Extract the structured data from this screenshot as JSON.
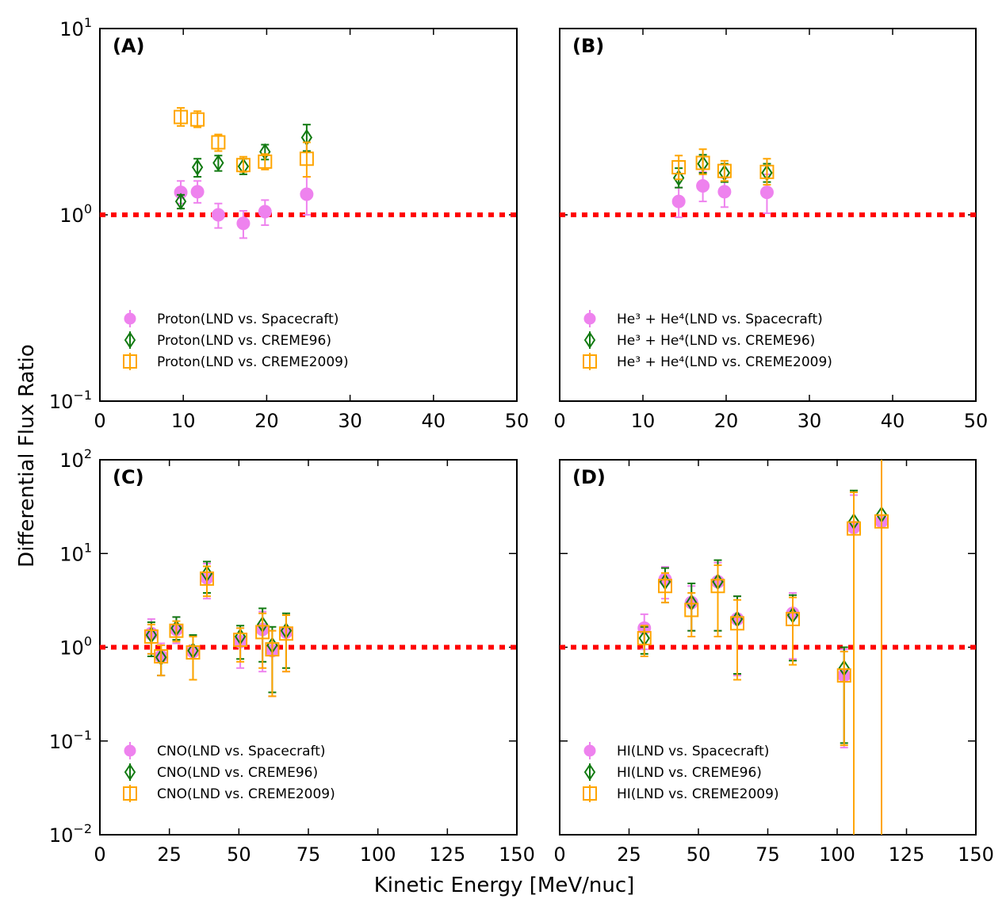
{
  "figure": {
    "ylabel": "Differential Flux Ratio",
    "xlabel": "Kinetic Energy [MeV/nuc]"
  },
  "colors": {
    "spacecraft": "#ee82ee",
    "creme96": "#117a11",
    "creme2009": "#ffa500",
    "reference_line": "#ff0000"
  },
  "chart_data": [
    {
      "panel": "(A)",
      "type": "scatter",
      "xlim": [
        0,
        50
      ],
      "ylim": [
        0.1,
        10
      ],
      "yscale": "log",
      "xticks": [
        0,
        10,
        20,
        30,
        40,
        50
      ],
      "yticks": [
        {
          "mant": "10",
          "exp": "−1",
          "v": 0.1
        },
        {
          "mant": "10",
          "exp": "0",
          "v": 1
        },
        {
          "mant": "10",
          "exp": "1",
          "v": 10
        }
      ],
      "reference_y": 1,
      "series": [
        {
          "name": "Proton(LND vs.  Spacecraft)",
          "marker": "circle",
          "color_key": "spacecraft",
          "points": [
            {
              "x": 9.7,
              "y": 1.32,
              "lo": 1.15,
              "hi": 1.52
            },
            {
              "x": 11.7,
              "y": 1.33,
              "lo": 1.16,
              "hi": 1.52
            },
            {
              "x": 14.2,
              "y": 1.0,
              "lo": 0.85,
              "hi": 1.15
            },
            {
              "x": 17.2,
              "y": 0.9,
              "lo": 0.75,
              "hi": 1.05
            },
            {
              "x": 19.8,
              "y": 1.04,
              "lo": 0.88,
              "hi": 1.2
            },
            {
              "x": 24.8,
              "y": 1.29,
              "lo": 1.0,
              "hi": 1.6
            }
          ]
        },
        {
          "name": "Proton(LND vs.  CREME96)",
          "marker": "diamond",
          "color_key": "creme96",
          "points": [
            {
              "x": 9.7,
              "y": 1.18,
              "lo": 1.08,
              "hi": 1.28
            },
            {
              "x": 11.7,
              "y": 1.8,
              "lo": 1.6,
              "hi": 2.0
            },
            {
              "x": 14.2,
              "y": 1.9,
              "lo": 1.72,
              "hi": 2.08
            },
            {
              "x": 17.2,
              "y": 1.82,
              "lo": 1.65,
              "hi": 2.0
            },
            {
              "x": 19.8,
              "y": 2.18,
              "lo": 1.98,
              "hi": 2.38
            },
            {
              "x": 24.8,
              "y": 2.6,
              "lo": 2.2,
              "hi": 3.05
            }
          ]
        },
        {
          "name": "Proton(LND vs.  CREME2009)",
          "marker": "square",
          "color_key": "creme2009",
          "points": [
            {
              "x": 9.7,
              "y": 3.35,
              "lo": 3.0,
              "hi": 3.75
            },
            {
              "x": 11.7,
              "y": 3.25,
              "lo": 2.95,
              "hi": 3.6
            },
            {
              "x": 14.2,
              "y": 2.45,
              "lo": 2.2,
              "hi": 2.7
            },
            {
              "x": 17.2,
              "y": 1.85,
              "lo": 1.7,
              "hi": 2.05
            },
            {
              "x": 19.8,
              "y": 1.93,
              "lo": 1.75,
              "hi": 2.12
            },
            {
              "x": 24.8,
              "y": 2.0,
              "lo": 1.6,
              "hi": 2.45
            }
          ]
        }
      ]
    },
    {
      "panel": "(B)",
      "type": "scatter",
      "xlim": [
        0,
        50
      ],
      "ylim": [
        0.1,
        10
      ],
      "yscale": "log",
      "xticks": [
        0,
        10,
        20,
        30,
        40,
        50
      ],
      "yticks": [],
      "reference_y": 1,
      "series": [
        {
          "name": "He³ + He⁴(LND vs.  Spacecraft)",
          "marker": "circle",
          "color_key": "spacecraft",
          "points": [
            {
              "x": 14.3,
              "y": 1.18,
              "lo": 0.97,
              "hi": 1.4
            },
            {
              "x": 17.2,
              "y": 1.43,
              "lo": 1.18,
              "hi": 1.7
            },
            {
              "x": 19.8,
              "y": 1.33,
              "lo": 1.1,
              "hi": 1.58
            },
            {
              "x": 24.9,
              "y": 1.32,
              "lo": 1.02,
              "hi": 1.65
            }
          ]
        },
        {
          "name": "He³ + He⁴(LND vs.  CREME96)",
          "marker": "diamond",
          "color_key": "creme96",
          "points": [
            {
              "x": 14.3,
              "y": 1.58,
              "lo": 1.4,
              "hi": 1.78
            },
            {
              "x": 17.2,
              "y": 1.88,
              "lo": 1.68,
              "hi": 2.1
            },
            {
              "x": 19.8,
              "y": 1.68,
              "lo": 1.5,
              "hi": 1.88
            },
            {
              "x": 24.9,
              "y": 1.68,
              "lo": 1.5,
              "hi": 1.88
            }
          ]
        },
        {
          "name": "He³ + He⁴(LND vs.  CREME2009)",
          "marker": "square",
          "color_key": "creme2009",
          "points": [
            {
              "x": 14.3,
              "y": 1.8,
              "lo": 1.55,
              "hi": 2.08
            },
            {
              "x": 17.2,
              "y": 1.9,
              "lo": 1.65,
              "hi": 2.25
            },
            {
              "x": 19.8,
              "y": 1.72,
              "lo": 1.52,
              "hi": 1.95
            },
            {
              "x": 24.9,
              "y": 1.7,
              "lo": 1.45,
              "hi": 2.0
            }
          ]
        }
      ]
    },
    {
      "panel": "(C)",
      "type": "scatter",
      "xlim": [
        0,
        150
      ],
      "ylim": [
        0.01,
        100
      ],
      "yscale": "log",
      "xticks": [
        0,
        25,
        50,
        75,
        100,
        125,
        150
      ],
      "yticks": [
        {
          "mant": "10",
          "exp": "−2",
          "v": 0.01
        },
        {
          "mant": "10",
          "exp": "−1",
          "v": 0.1
        },
        {
          "mant": "10",
          "exp": "0",
          "v": 1
        },
        {
          "mant": "10",
          "exp": "1",
          "v": 10
        },
        {
          "mant": "10",
          "exp": "2",
          "v": 100
        }
      ],
      "reference_y": 1,
      "series": [
        {
          "name": "CNO(LND vs.  Spacecraft)",
          "marker": "circle",
          "color_key": "spacecraft",
          "points": [
            {
              "x": 18.5,
              "y": 1.4,
              "lo": 0.85,
              "hi": 2.0
            },
            {
              "x": 22,
              "y": 0.8,
              "lo": 0.5,
              "hi": 1.1
            },
            {
              "x": 27.5,
              "y": 1.55,
              "lo": 1.1,
              "hi": 2.1
            },
            {
              "x": 33.5,
              "y": 0.9,
              "lo": 0.45,
              "hi": 1.3
            },
            {
              "x": 38.5,
              "y": 5.5,
              "lo": 3.3,
              "hi": 7.8
            },
            {
              "x": 50.5,
              "y": 1.15,
              "lo": 0.6,
              "hi": 1.6
            },
            {
              "x": 58.5,
              "y": 1.55,
              "lo": 0.55,
              "hi": 2.4
            },
            {
              "x": 62,
              "y": 0.92,
              "lo": 0.3,
              "hi": 1.5
            },
            {
              "x": 67,
              "y": 1.45,
              "lo": 0.55,
              "hi": 2.2
            }
          ]
        },
        {
          "name": "CNO(LND vs.  CREME96)",
          "marker": "diamond",
          "color_key": "creme96",
          "points": [
            {
              "x": 18.5,
              "y": 1.35,
              "lo": 0.8,
              "hi": 1.85
            },
            {
              "x": 22,
              "y": 0.78,
              "lo": 0.5,
              "hi": 1.05
            },
            {
              "x": 27.5,
              "y": 1.6,
              "lo": 1.2,
              "hi": 2.1
            },
            {
              "x": 33.5,
              "y": 0.92,
              "lo": 0.45,
              "hi": 1.35
            },
            {
              "x": 38.5,
              "y": 6.1,
              "lo": 3.8,
              "hi": 8.2
            },
            {
              "x": 50.5,
              "y": 1.3,
              "lo": 0.75,
              "hi": 1.7
            },
            {
              "x": 58.5,
              "y": 1.75,
              "lo": 0.7,
              "hi": 2.6
            },
            {
              "x": 62,
              "y": 1.05,
              "lo": 0.33,
              "hi": 1.65
            },
            {
              "x": 67,
              "y": 1.5,
              "lo": 0.6,
              "hi": 2.3
            }
          ]
        },
        {
          "name": "CNO(LND vs.  CREME2009)",
          "marker": "square",
          "color_key": "creme2009",
          "points": [
            {
              "x": 18.5,
              "y": 1.3,
              "lo": 0.85,
              "hi": 1.75
            },
            {
              "x": 22,
              "y": 0.8,
              "lo": 0.5,
              "hi": 1.05
            },
            {
              "x": 27.5,
              "y": 1.5,
              "lo": 1.15,
              "hi": 1.9
            },
            {
              "x": 33.5,
              "y": 0.88,
              "lo": 0.45,
              "hi": 1.3
            },
            {
              "x": 38.5,
              "y": 5.4,
              "lo": 3.5,
              "hi": 7.3
            },
            {
              "x": 50.5,
              "y": 1.2,
              "lo": 0.7,
              "hi": 1.6
            },
            {
              "x": 58.5,
              "y": 1.45,
              "lo": 0.6,
              "hi": 2.3
            },
            {
              "x": 62,
              "y": 0.95,
              "lo": 0.3,
              "hi": 1.5
            },
            {
              "x": 67,
              "y": 1.4,
              "lo": 0.55,
              "hi": 2.2
            }
          ]
        }
      ]
    },
    {
      "panel": "(D)",
      "type": "scatter",
      "xlim": [
        0,
        150
      ],
      "ylim": [
        0.01,
        100
      ],
      "yscale": "log",
      "xticks": [
        0,
        25,
        50,
        75,
        100,
        125,
        150
      ],
      "yticks": [],
      "reference_y": 1,
      "series": [
        {
          "name": "HI(LND vs.  Spacecraft)",
          "marker": "circle",
          "color_key": "spacecraft",
          "points": [
            {
              "x": 30.5,
              "y": 1.6,
              "lo": 0.95,
              "hi": 2.25
            },
            {
              "x": 38,
              "y": 5.3,
              "lo": 3.3,
              "hi": 7.2
            },
            {
              "x": 47.5,
              "y": 3.0,
              "lo": 1.5,
              "hi": 4.5
            },
            {
              "x": 57,
              "y": 5.0,
              "lo": 1.5,
              "hi": 8.0
            },
            {
              "x": 64,
              "y": 2.0,
              "lo": 0.5,
              "hi": 3.5
            },
            {
              "x": 84,
              "y": 2.3,
              "lo": 0.75,
              "hi": 3.8
            },
            {
              "x": 102.5,
              "y": 0.5,
              "lo": 0.085,
              "hi": 0.95
            },
            {
              "x": 106,
              "y": 19,
              "lo": 0.01,
              "hi": 42
            },
            {
              "x": 116,
              "y": 22,
              "lo": 0.01,
              "hi": 100
            }
          ]
        },
        {
          "name": "HI(LND vs.  CREME96)",
          "marker": "diamond",
          "color_key": "creme96",
          "points": [
            {
              "x": 30.5,
              "y": 1.25,
              "lo": 0.85,
              "hi": 1.65
            },
            {
              "x": 38,
              "y": 5.0,
              "lo": 3.0,
              "hi": 7.0
            },
            {
              "x": 47.5,
              "y": 3.0,
              "lo": 1.5,
              "hi": 4.8
            },
            {
              "x": 57,
              "y": 5.0,
              "lo": 1.5,
              "hi": 8.5
            },
            {
              "x": 64,
              "y": 2.0,
              "lo": 0.52,
              "hi": 3.5
            },
            {
              "x": 84,
              "y": 2.2,
              "lo": 0.72,
              "hi": 3.6
            },
            {
              "x": 102.5,
              "y": 0.6,
              "lo": 0.095,
              "hi": 1.0
            },
            {
              "x": 106,
              "y": 22,
              "lo": 0.01,
              "hi": 47
            },
            {
              "x": 116,
              "y": 26,
              "lo": 0.01,
              "hi": 100
            }
          ]
        },
        {
          "name": "HI(LND vs.  CREME2009)",
          "marker": "square",
          "color_key": "creme2009",
          "points": [
            {
              "x": 30.5,
              "y": 1.25,
              "lo": 0.8,
              "hi": 1.7
            },
            {
              "x": 38,
              "y": 4.5,
              "lo": 3.0,
              "hi": 6.2
            },
            {
              "x": 47.5,
              "y": 2.5,
              "lo": 1.3,
              "hi": 3.8
            },
            {
              "x": 57,
              "y": 4.5,
              "lo": 1.3,
              "hi": 7.5
            },
            {
              "x": 64,
              "y": 1.8,
              "lo": 0.45,
              "hi": 3.2
            },
            {
              "x": 84,
              "y": 2.0,
              "lo": 0.65,
              "hi": 3.4
            },
            {
              "x": 102.5,
              "y": 0.5,
              "lo": 0.09,
              "hi": 0.9
            },
            {
              "x": 106,
              "y": 18.5,
              "lo": 0.01,
              "hi": 45
            },
            {
              "x": 116,
              "y": 22,
              "lo": 0.01,
              "hi": 100
            }
          ]
        }
      ]
    }
  ]
}
